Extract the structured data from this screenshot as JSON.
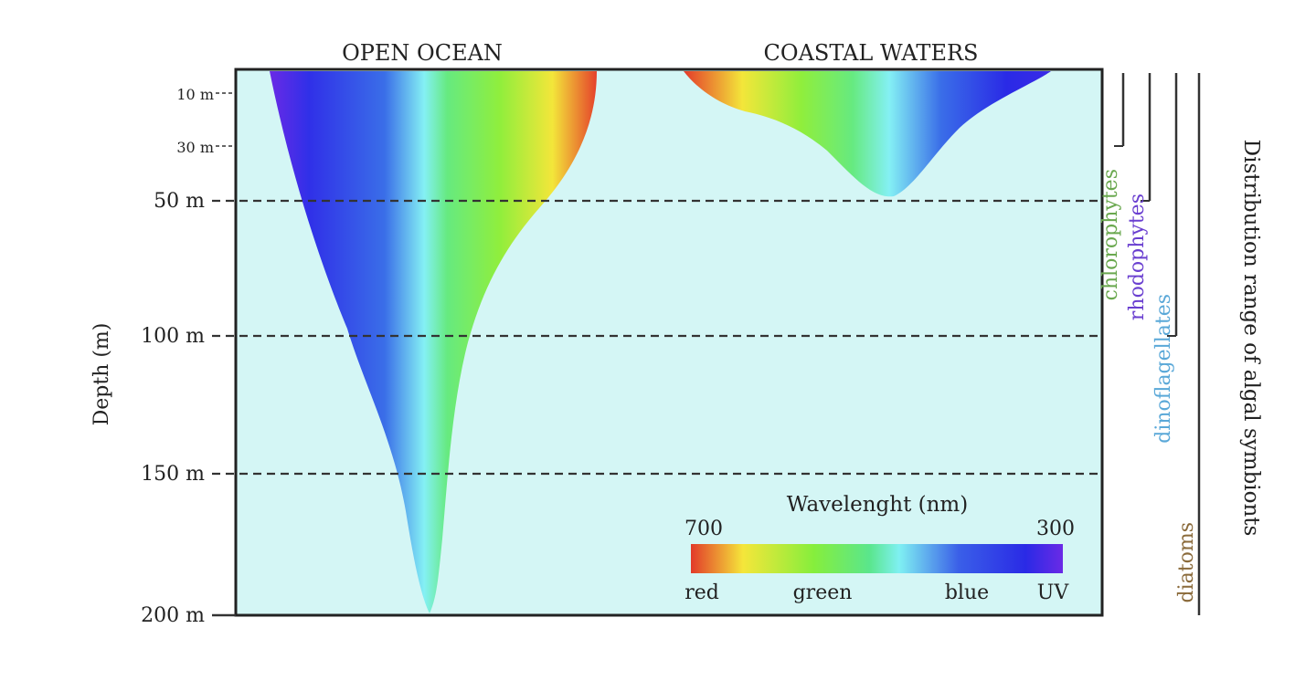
{
  "header": {
    "open_ocean": "OPEN OCEAN",
    "coastal_waters": "COASTAL WATERS"
  },
  "axis": {
    "ylabel": "Depth (m)",
    "ticks": [
      {
        "label": "10 m",
        "depth": 10
      },
      {
        "label": "30 m",
        "depth": 30
      },
      {
        "label": "50 m",
        "depth": 50
      },
      {
        "label": "100 m",
        "depth": 100
      },
      {
        "label": "150 m",
        "depth": 150
      },
      {
        "label": "200 m",
        "depth": 200
      }
    ],
    "dashed_depths": [
      50,
      100,
      150
    ]
  },
  "legend": {
    "title": "Wavelenght (nm)",
    "left_value": "700",
    "right_value": "300",
    "labels": {
      "red": "red",
      "green": "green",
      "blue": "blue",
      "uv": "UV"
    },
    "gradient": [
      "#e23a2a",
      "#f5e63a",
      "#86ee3c",
      "#5ae68c",
      "#7ff0f2",
      "#3a5fe8",
      "#2a2ae6",
      "#6a2ae6"
    ]
  },
  "symbionts": {
    "title": "Distribution range of algal symbionts",
    "groups": [
      {
        "name": "chlorophytes",
        "color": "#6aa84f",
        "max_depth": 30
      },
      {
        "name": "rhodophytes",
        "color": "#6a3fd0",
        "max_depth": 50
      },
      {
        "name": "dinoflagellates",
        "color": "#5aa8d8",
        "max_depth": 100
      },
      {
        "name": "diatoms",
        "color": "#8a6a3a",
        "max_depth": 200
      }
    ]
  },
  "colors": {
    "water": "#d4f6f5",
    "frame": "#222222"
  }
}
